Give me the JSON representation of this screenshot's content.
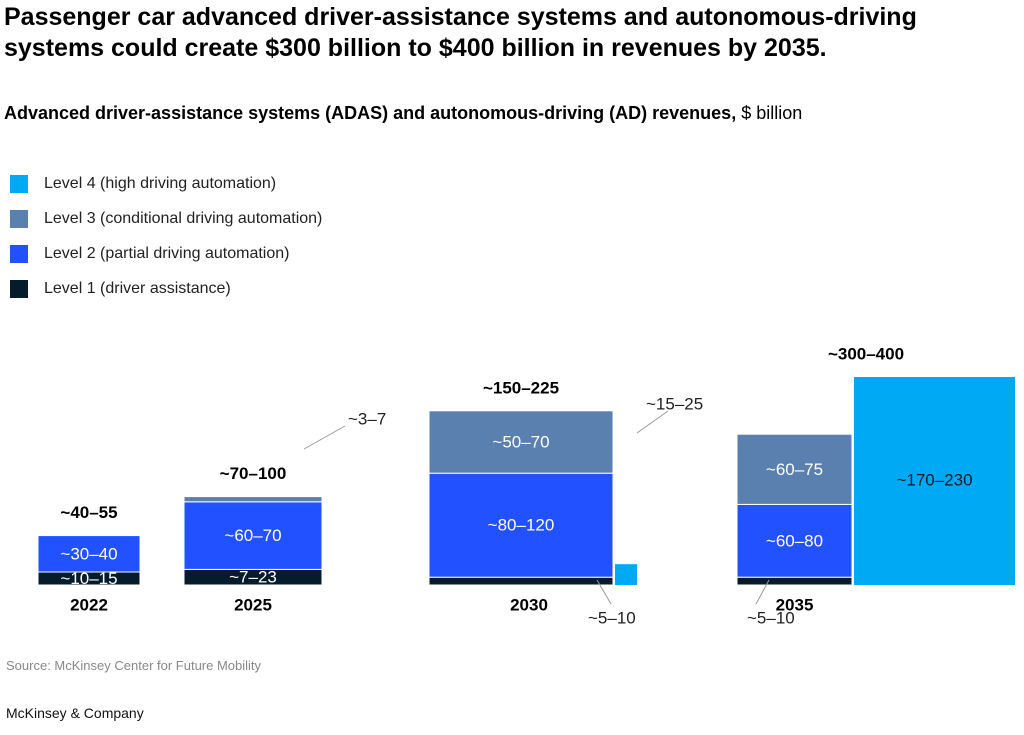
{
  "title_lines": [
    "Passenger car advanced driver-assistance systems and autonomous-driving",
    "systems could create $300 billion to $400 billion in revenues by 2035."
  ],
  "subtitle": {
    "bold": "Advanced driver-assistance systems (ADAS) and autonomous-driving (AD) revenues,",
    "unit": " $ billion"
  },
  "source": "Source: McKinsey Center for Future Mobility",
  "brand": "McKinsey & Company",
  "chart_data": {
    "type": "bar",
    "stacked": true,
    "unit": "$ billion",
    "legend_placement": "top-left",
    "grid": false,
    "categories": [
      "2022",
      "2025",
      "2030",
      "2035"
    ],
    "totals": [
      "~40–55",
      "~70–100",
      "~150–225",
      "~300–400"
    ],
    "series": [
      {
        "name": "Level 4 (high driving automation)",
        "color": "#00a9f4",
        "labels": [
          "",
          "",
          "~15–25",
          "~170–230"
        ],
        "values": [
          0,
          0,
          20,
          200
        ]
      },
      {
        "name": "Level 3 (conditional driving automation)",
        "color": "#5a80b0",
        "labels": [
          "",
          "~3–7",
          "~50–70",
          "~60–75"
        ],
        "values": [
          0,
          5,
          60,
          67.5
        ]
      },
      {
        "name": "Level 2 (partial driving automation)",
        "color": "#2251ff",
        "labels": [
          "~30–40",
          "~60–70",
          "~80–120",
          "~60–80"
        ],
        "values": [
          35,
          65,
          100,
          70
        ]
      },
      {
        "name": "Level 1 (driver assistance)",
        "color": "#051c2c",
        "labels": [
          "~10–15",
          "~7–23",
          "~5–10",
          "~5–10"
        ],
        "values": [
          12.5,
          15,
          7.5,
          7.5
        ]
      }
    ]
  }
}
